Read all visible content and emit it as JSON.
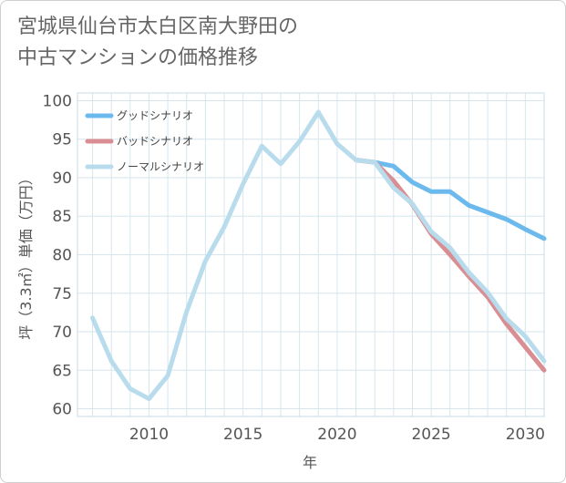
{
  "title_line1": "宮城県仙台市太白区南大野田の",
  "title_line2": "中古マンションの価格推移",
  "chart_data": {
    "type": "line",
    "title": "宮城県仙台市太白区南大野田の中古マンションの価格推移",
    "xlabel": "年",
    "ylabel": "坪（3.3㎡）単価（万円）",
    "xlim": [
      2006.2,
      2031
    ],
    "ylim": [
      59,
      101
    ],
    "x_ticks": [
      2010,
      2015,
      2020,
      2025,
      2030
    ],
    "y_ticks": [
      60,
      65,
      70,
      75,
      80,
      85,
      90,
      95,
      100
    ],
    "grid": true,
    "legend_position": "top-left",
    "series": [
      {
        "name": "グッドシナリオ",
        "color": "#6cb9ee",
        "x": [
          2021,
          2022,
          2023,
          2024,
          2025,
          2026,
          2027,
          2028,
          2029,
          2030,
          2031
        ],
        "values": [
          92.3,
          92.0,
          91.5,
          89.4,
          88.2,
          88.2,
          86.4,
          85.5,
          84.6,
          83.3,
          82.1
        ]
      },
      {
        "name": "バッドシナリオ",
        "color": "#d98e93",
        "x": [
          2021,
          2022,
          2023,
          2024,
          2025,
          2026,
          2027,
          2028,
          2029,
          2030,
          2031
        ],
        "values": [
          92.3,
          92.0,
          89.6,
          86.5,
          82.7,
          80.0,
          77.2,
          74.5,
          71.0,
          68.0,
          65.0
        ]
      },
      {
        "name": "ノーマルシナリオ",
        "color": "#b9dcec",
        "x": [
          2007,
          2008,
          2009,
          2010,
          2011,
          2012,
          2013,
          2014,
          2015,
          2016,
          2017,
          2018,
          2019,
          2020,
          2021,
          2022,
          2023,
          2024,
          2025,
          2026,
          2027,
          2028,
          2029,
          2030,
          2031
        ],
        "values": [
          71.8,
          66.2,
          62.6,
          61.3,
          64.3,
          72.6,
          79.2,
          83.6,
          89.2,
          94.1,
          91.8,
          94.7,
          98.5,
          94.4,
          92.3,
          92.0,
          88.7,
          86.6,
          83.0,
          80.9,
          77.7,
          75.1,
          71.7,
          69.4,
          66.2
        ]
      }
    ]
  }
}
